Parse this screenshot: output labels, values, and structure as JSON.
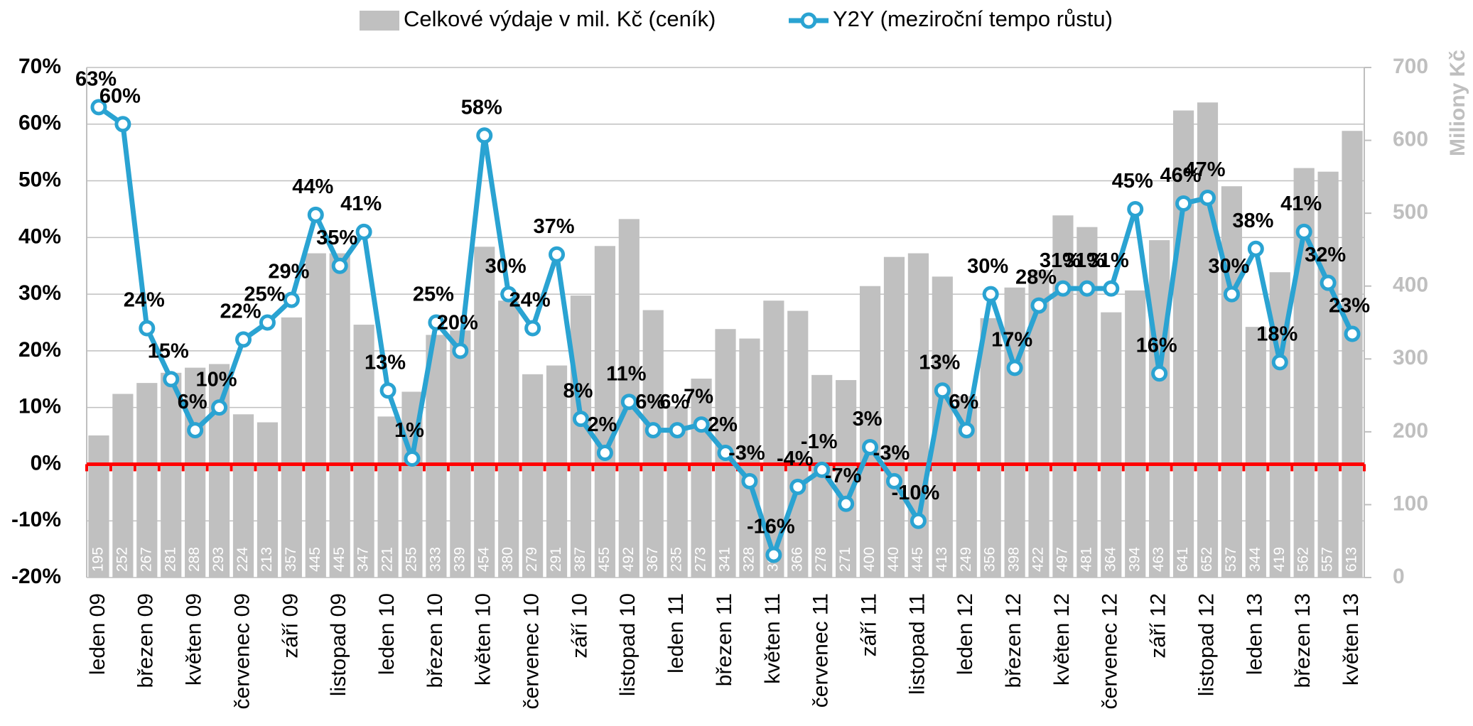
{
  "chart_data": {
    "type": "bar",
    "y2label": "Miliony Kč",
    "categories": [
      "leden 09",
      null,
      "březen 09",
      null,
      "květen 09",
      null,
      "červenec 09",
      null,
      "září 09",
      null,
      "listopad 09",
      null,
      "leden 10",
      null,
      "březen 10",
      null,
      "květen 10",
      null,
      "červenec 10",
      null,
      "září 10",
      null,
      "listopad 10",
      null,
      "leden 11",
      null,
      "březen 11",
      null,
      "květen 11",
      null,
      "červenec 11",
      null,
      "září 11",
      null,
      "listopad 11",
      null,
      "leden 12",
      null,
      "březen 12",
      null,
      "květen 12",
      null,
      "červenec 12",
      null,
      "září 12",
      null,
      "listopad 12",
      null,
      "leden 13",
      null,
      "březen 13",
      null,
      "květen 13"
    ],
    "series": [
      {
        "name": "Celkové výdaje v mil. Kč (ceník)",
        "type": "bar",
        "axis": "y2",
        "color": "#c0c0c0",
        "values": [
          195,
          252,
          267,
          281,
          288,
          293,
          224,
          213,
          357,
          445,
          445,
          347,
          221,
          255,
          333,
          339,
          454,
          380,
          279,
          291,
          387,
          455,
          492,
          367,
          235,
          273,
          341,
          328,
          380,
          366,
          278,
          271,
          400,
          440,
          445,
          413,
          249,
          356,
          398,
          422,
          497,
          481,
          364,
          394,
          463,
          641,
          652,
          537,
          344,
          419,
          562,
          557,
          613
        ]
      },
      {
        "name": "Y2Y (meziroční tempo růstu)",
        "type": "line",
        "color": "#2aa3d2",
        "values": [
          63,
          60,
          24,
          15,
          6,
          10,
          22,
          25,
          29,
          44,
          35,
          41,
          13,
          1,
          25,
          20,
          58,
          30,
          24,
          37,
          8,
          2,
          11,
          6,
          6,
          7,
          2,
          -3,
          -16,
          -4,
          -1,
          -7,
          3,
          -3,
          -10,
          13,
          6,
          30,
          17,
          28,
          31,
          31,
          31,
          45,
          16,
          46,
          47,
          30,
          38,
          18,
          41,
          32,
          23
        ],
        "value_labels": [
          "63%",
          "60%",
          "24%",
          "15%",
          "6%",
          "10%",
          "22%",
          "25%",
          "29%",
          "44%",
          "35%",
          "41%",
          "13%",
          "1%",
          "25%",
          "20%",
          "58%",
          "30%",
          "24%",
          "37%",
          "8%",
          "2%",
          "11%",
          "6%",
          "6%",
          "7%",
          "2%",
          "-3%",
          "-16%",
          "-4%",
          "-1%",
          "-7%",
          "3%",
          "-3%",
          "-10%",
          "13%",
          "6%",
          "30%",
          "17%",
          "28%",
          "31%",
          "31%",
          "31%",
          "45%",
          "16%",
          "46%",
          "47%",
          "30%",
          "38%",
          "18%",
          "41%",
          "32%",
          "23%"
        ]
      }
    ],
    "ylim": [
      -20,
      70
    ],
    "yticks": [
      {
        "value": -20,
        "label": "-20%"
      },
      {
        "value": -10,
        "label": "-10%"
      },
      {
        "value": 0,
        "label": "0%"
      },
      {
        "value": 10,
        "label": "10%"
      },
      {
        "value": 20,
        "label": "20%"
      },
      {
        "value": 30,
        "label": "30%"
      },
      {
        "value": 40,
        "label": "40%"
      },
      {
        "value": 50,
        "label": "50%"
      },
      {
        "value": 60,
        "label": "60%"
      },
      {
        "value": 70,
        "label": "70%"
      }
    ],
    "y2lim": [
      0,
      700
    ],
    "y2ticks": [
      0,
      100,
      200,
      300,
      400,
      500,
      600,
      700
    ],
    "grid": true,
    "legend": "top",
    "zero_line_color": "#ff0000"
  }
}
